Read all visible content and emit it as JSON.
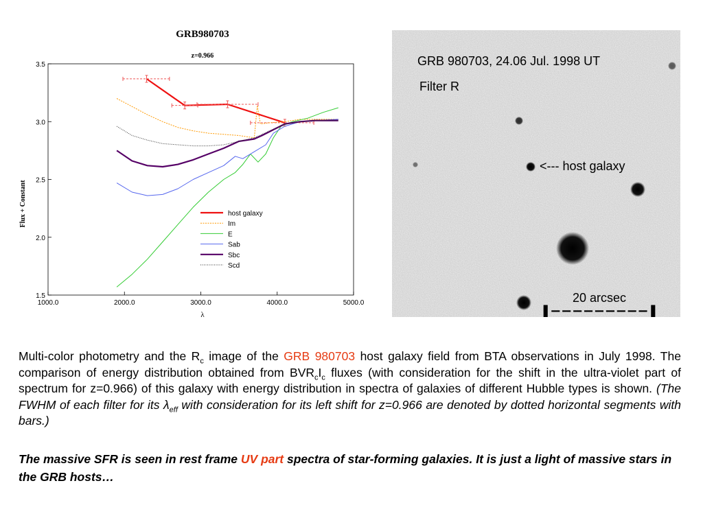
{
  "chart_data": {
    "type": "line",
    "title": "GRB980703",
    "subtitle": "z=0.966",
    "xlabel": "λ",
    "ylabel": "Flux + Constant",
    "xlim": [
      1000,
      5000
    ],
    "ylim": [
      1.5,
      3.5
    ],
    "xticks": [
      "1000.0",
      "2000.0",
      "3000.0",
      "4000.0",
      "5000.0"
    ],
    "xtick_values": [
      1000,
      2000,
      3000,
      4000,
      5000
    ],
    "yticks": [
      "1.5",
      "2.0",
      "2.5",
      "3.0",
      "3.5"
    ],
    "ytick_values": [
      1.5,
      2.0,
      2.5,
      3.0,
      3.5
    ],
    "grid": false,
    "legend_position": "bottom-right",
    "series": [
      {
        "name": "host galaxy",
        "color": "#ee1111",
        "style": "thick",
        "x": [
          2290,
          2790,
          3350,
          4100
        ],
        "y": [
          3.37,
          3.14,
          3.15,
          2.99
        ],
        "xerr": [
          [
            1980,
            2590
          ],
          [
            2620,
            2960
          ],
          [
            2950,
            3750
          ],
          [
            3650,
            4480
          ]
        ],
        "yerr": [
          [
            3.34,
            3.4
          ],
          [
            3.11,
            3.17
          ],
          [
            3.12,
            3.18
          ],
          [
            2.96,
            3.02
          ]
        ]
      },
      {
        "name": "Im",
        "color": "#ff9900",
        "style": "dashed",
        "x": [
          1900,
          2100,
          2300,
          2500,
          2700,
          2900,
          3100,
          3300,
          3500,
          3600,
          3700,
          3740,
          3780,
          3900,
          4100,
          4300,
          4500,
          4800
        ],
        "y": [
          3.2,
          3.13,
          3.06,
          3.0,
          2.95,
          2.92,
          2.9,
          2.89,
          2.88,
          2.87,
          2.86,
          3.14,
          2.98,
          2.99,
          3.0,
          3.02,
          3.02,
          3.02
        ]
      },
      {
        "name": "E",
        "color": "#33cc33",
        "style": "solid",
        "x": [
          1900,
          2100,
          2300,
          2500,
          2700,
          2900,
          3100,
          3300,
          3450,
          3550,
          3650,
          3750,
          3850,
          3950,
          4050,
          4200,
          4400,
          4600,
          4800
        ],
        "y": [
          1.57,
          1.68,
          1.81,
          1.96,
          2.11,
          2.26,
          2.39,
          2.5,
          2.56,
          2.63,
          2.72,
          2.65,
          2.72,
          2.86,
          2.96,
          3.0,
          3.03,
          3.08,
          3.12
        ]
      },
      {
        "name": "Sab",
        "color": "#5566ee",
        "style": "solid",
        "x": [
          1900,
          2100,
          2300,
          2500,
          2700,
          2900,
          3100,
          3300,
          3450,
          3550,
          3700,
          3850,
          3950,
          4100,
          4300,
          4500,
          4800
        ],
        "y": [
          2.47,
          2.39,
          2.36,
          2.37,
          2.42,
          2.5,
          2.56,
          2.62,
          2.7,
          2.68,
          2.74,
          2.8,
          2.9,
          2.96,
          3.0,
          3.01,
          3.02
        ]
      },
      {
        "name": "Sbc",
        "color": "#550066",
        "style": "thick",
        "x": [
          1900,
          2100,
          2300,
          2500,
          2700,
          2900,
          3100,
          3300,
          3500,
          3700,
          3800,
          3950,
          4100,
          4300,
          4500,
          4800
        ],
        "y": [
          2.75,
          2.66,
          2.62,
          2.61,
          2.63,
          2.67,
          2.72,
          2.77,
          2.83,
          2.85,
          2.88,
          2.93,
          2.98,
          3.0,
          3.01,
          3.01
        ]
      },
      {
        "name": "Scd",
        "color": "#333333",
        "style": "dotted",
        "x": [
          1900,
          2100,
          2300,
          2500,
          2700,
          2900,
          3100,
          3300,
          3500,
          3700,
          3900,
          4100,
          4300,
          4500,
          4800
        ],
        "y": [
          2.96,
          2.88,
          2.84,
          2.81,
          2.8,
          2.79,
          2.79,
          2.8,
          2.83,
          2.86,
          2.92,
          2.98,
          3.0,
          3.01,
          3.01
        ]
      }
    ]
  },
  "image_panel": {
    "title": "GRB 980703, 24.06 Jul. 1998 UT",
    "filter": "Filter R",
    "arrow_label": "<--- host galaxy",
    "scale_label": "20 arcsec",
    "scale_bar_text": "|---------|"
  },
  "caption": {
    "part1": "Multi-color photometry and the R",
    "sub_c": "c",
    "part2": " image of the ",
    "link": "GRB 980703",
    "part3": " host galaxy field from BTA observations in July 1998. The comparison of energy distribution obtained from BVR",
    "sub_c2": "c",
    "part4": "I",
    "sub_c3": "c",
    "part5": " fluxes (with consideration for the shift in the ultra-violet part of spectrum for z=0.966) of this galaxy with energy distribution in spectra of galaxies of different Hubble types is shown. ",
    "italic1": "(The FWHM of each filter for its λ",
    "sub_eff": "eff",
    "italic2": "  with consideration for its left shift for z=0.966 are denoted by dotted horizontal segments with bars.)"
  },
  "conclusion": {
    "part1": "The massive SFR is seen in rest frame ",
    "highlight": "UV part",
    "part2": " spectra of star-forming galaxies. It is just a light of massive stars in the GRB hosts…"
  }
}
